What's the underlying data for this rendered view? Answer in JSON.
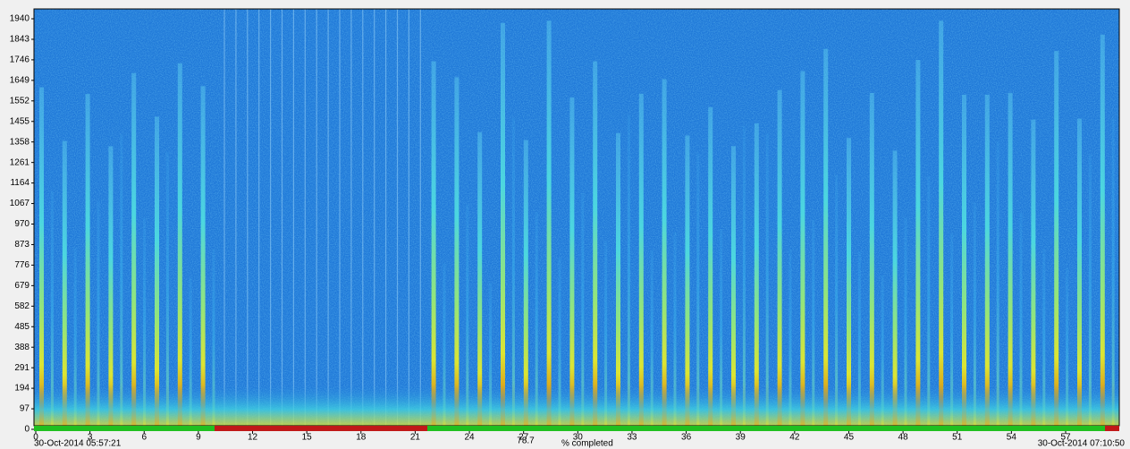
{
  "spectrogram": {
    "yticks": [
      0,
      97,
      194,
      291,
      388,
      485,
      582,
      679,
      776,
      873,
      970,
      1067,
      1164,
      1261,
      1358,
      1455,
      1552,
      1649,
      1746,
      1843,
      1940
    ],
    "xticks": [
      0,
      3,
      6,
      9,
      12,
      15,
      18,
      21,
      24,
      27,
      30,
      33,
      36,
      39,
      42,
      45,
      48,
      51,
      54,
      57
    ],
    "start_time": "30-Oct-2014 05:57:21",
    "end_time": "30-Oct-2014 07:10:50",
    "progress": 78.7,
    "progress_label": "% completed"
  }
}
